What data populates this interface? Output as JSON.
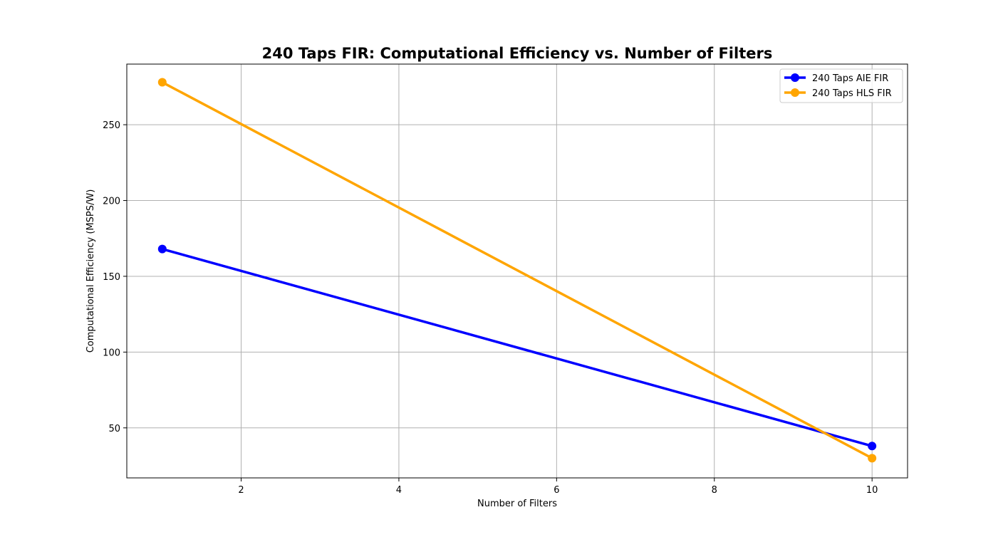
{
  "chart_data": {
    "type": "line",
    "title": "240 Taps FIR: Computational Efficiency vs. Number of Filters",
    "xlabel": "Number of Filters",
    "ylabel": "Computational Efficiency (MSPS/W)",
    "xlim": [
      0.55,
      10.45
    ],
    "ylim": [
      17,
      290
    ],
    "xticks": [
      2,
      4,
      6,
      8,
      10
    ],
    "yticks": [
      50,
      100,
      150,
      200,
      250
    ],
    "grid": true,
    "legend_position": "top-right",
    "series": [
      {
        "name": "240 Taps AIE FIR",
        "color": "#0000ff",
        "x": [
          1,
          10
        ],
        "y": [
          168,
          38
        ]
      },
      {
        "name": "240 Taps HLS FIR",
        "color": "#ffa500",
        "x": [
          1,
          10
        ],
        "y": [
          278,
          30
        ]
      }
    ]
  }
}
